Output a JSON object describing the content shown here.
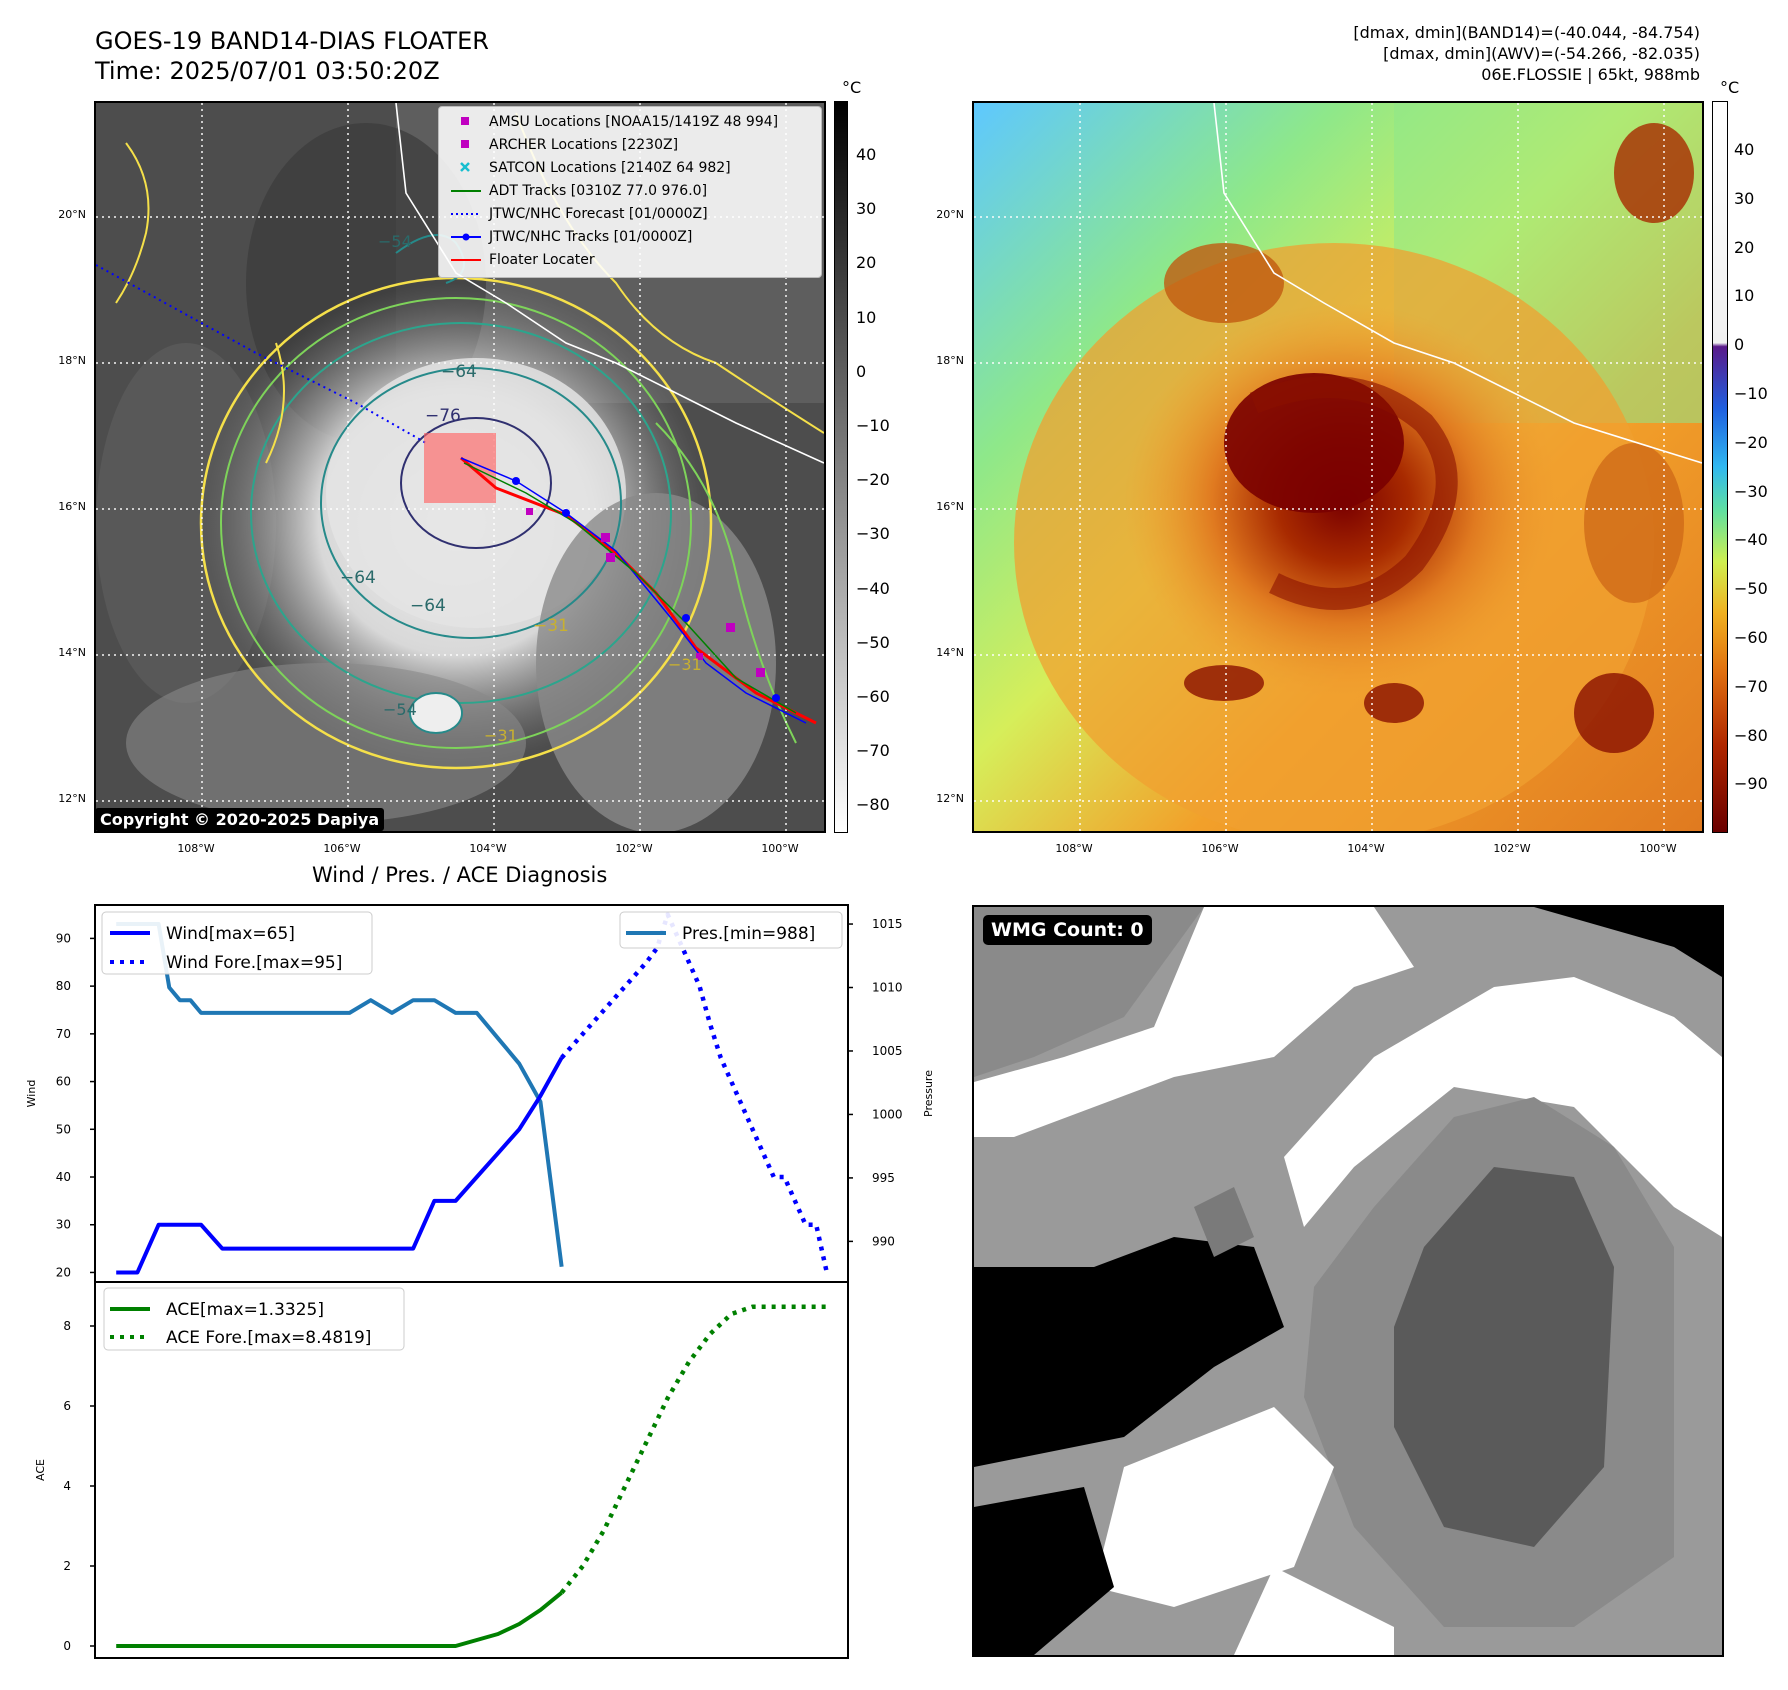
{
  "header": {
    "title_line1": "GOES-19 BAND14-DIAS FLOATER",
    "title_line2": "Time: 2025/07/01 03:50:20Z",
    "info_line1": "[dmax, dmin](BAND14)=(-40.044, -84.754)",
    "info_line2": "[dmax, dmin](AWV)=(-54.266, -82.035)",
    "info_line3": "06E.FLOSSIE | 65kt, 988mb"
  },
  "map_axes": {
    "lat_labels": [
      "20°N",
      "18°N",
      "16°N",
      "14°N",
      "12°N"
    ],
    "lon_labels": [
      "108°W",
      "106°W",
      "104°W",
      "102°W",
      "100°W"
    ]
  },
  "left_map": {
    "colorbar_unit": "°C",
    "colorbar_ticks": [
      "40",
      "30",
      "20",
      "10",
      "0",
      "−10",
      "−20",
      "−30",
      "−40",
      "−50",
      "−60",
      "−70",
      "−80"
    ],
    "contour_labels": [
      "−64",
      "−76",
      "−64",
      "−64",
      "−31",
      "−54",
      "−54",
      "−31",
      "−31"
    ],
    "legend": [
      {
        "label": "AMSU Locations [NOAA15/1419Z 48 994]",
        "symbol": "square",
        "color": "#c000c0"
      },
      {
        "label": "ARCHER Locations [2230Z]",
        "symbol": "square",
        "color": "#c000c0"
      },
      {
        "label": "SATCON Locations [2140Z 64 982]",
        "symbol": "x",
        "color": "#17becf"
      },
      {
        "label": "ADT Tracks [0310Z 77.0 976.0]",
        "symbol": "line",
        "color": "#008000"
      },
      {
        "label": "JTWC/NHC Forecast [01/0000Z]",
        "symbol": "dotted",
        "color": "#0000ff"
      },
      {
        "label": "JTWC/NHC Tracks [01/0000Z]",
        "symbol": "line-dot",
        "color": "#0000ff"
      },
      {
        "label": "Floater Locater",
        "symbol": "line",
        "color": "#ff0000"
      }
    ],
    "copyright": "Copyright © 2020-2025 Dapiya"
  },
  "right_map": {
    "colorbar_unit": "°C",
    "colorbar_ticks": [
      "40",
      "30",
      "20",
      "10",
      "0",
      "−10",
      "−20",
      "−30",
      "−40",
      "−50",
      "−60",
      "−70",
      "−80",
      "−90"
    ]
  },
  "wmg": {
    "badge": "WMG Count: 0"
  },
  "chart_data": [
    {
      "type": "line",
      "title": "Wind / Pres. / ACE Diagnosis",
      "ylabel": "Wind",
      "ylabel_right": "Pressure",
      "ylim": [
        18,
        97
      ],
      "ylim_right": [
        986.8,
        1016.5
      ],
      "yticks": [
        20,
        30,
        40,
        50,
        60,
        70,
        80,
        90
      ],
      "yticks_right": [
        990,
        995,
        1000,
        1005,
        1010,
        1015
      ],
      "x": [
        0,
        1,
        2,
        3,
        4,
        5,
        6,
        7,
        8,
        9,
        10,
        11,
        12,
        13,
        14,
        15,
        16,
        17,
        18,
        19,
        20,
        21,
        22,
        23,
        24,
        25,
        26,
        27,
        28,
        29,
        30,
        31,
        32,
        33,
        34,
        35,
        36,
        37,
        38,
        39,
        40,
        41,
        42,
        43,
        44,
        45,
        46,
        47,
        48,
        49,
        50
      ],
      "legend_left": [
        "Wind[max=65]",
        "Wind Fore.[max=95]"
      ],
      "legend_right": [
        "Pres.[min=988]"
      ],
      "series": [
        {
          "name": "Wind[max=65]",
          "axis": "left",
          "style": "solid",
          "color": "#0000ff",
          "x": [
            0,
            2,
            4,
            6,
            8,
            10,
            12,
            14,
            16,
            18,
            20,
            22,
            24,
            26,
            28,
            30,
            32,
            34,
            36,
            38,
            40,
            42
          ],
          "values": [
            20,
            20,
            30,
            30,
            30,
            25,
            25,
            25,
            25,
            25,
            25,
            25,
            25,
            25,
            25,
            35,
            35,
            40,
            45,
            50,
            57,
            65
          ]
        },
        {
          "name": "Wind Fore.[max=95]",
          "axis": "left",
          "style": "dotted",
          "color": "#0000ff",
          "x": [
            42,
            44,
            46,
            48,
            50,
            51,
            52,
            53,
            54,
            55,
            56,
            57,
            58,
            59,
            60,
            61,
            62,
            63,
            64,
            65,
            66,
            67
          ],
          "values": [
            65,
            70,
            75,
            80,
            85,
            88,
            95,
            90,
            85,
            80,
            72,
            65,
            60,
            55,
            50,
            45,
            40,
            40,
            35,
            30,
            30,
            20
          ]
        },
        {
          "name": "Pres.[min=988]",
          "axis": "right",
          "style": "solid",
          "color": "#1f77b4",
          "x": [
            0,
            2,
            3,
            4,
            5,
            6,
            7,
            8,
            9,
            10,
            12,
            14,
            16,
            18,
            20,
            22,
            24,
            26,
            28,
            30,
            32,
            34,
            36,
            38,
            40,
            42
          ],
          "values": [
            1015,
            1015,
            1015,
            1015,
            1010,
            1009,
            1009,
            1008,
            1008,
            1008,
            1008,
            1008,
            1008,
            1008,
            1008,
            1008,
            1009,
            1008,
            1009,
            1009,
            1008,
            1008,
            1006,
            1004,
            1001,
            988
          ]
        }
      ]
    },
    {
      "type": "line",
      "ylabel": "ACE",
      "ylim": [
        -0.3,
        9.1
      ],
      "yticks": [
        0,
        2,
        4,
        6,
        8
      ],
      "legend": [
        "ACE[max=1.3325]",
        "ACE Fore.[max=8.4819]"
      ],
      "series": [
        {
          "name": "ACE[max=1.3325]",
          "style": "solid",
          "color": "#008000",
          "x": [
            0,
            5,
            10,
            15,
            20,
            25,
            30,
            32,
            34,
            36,
            38,
            40,
            42
          ],
          "values": [
            0,
            0,
            0,
            0,
            0,
            0,
            0,
            0,
            0.15,
            0.3,
            0.55,
            0.9,
            1.3325
          ]
        },
        {
          "name": "ACE Fore.[max=8.4819]",
          "style": "dotted",
          "color": "#008000",
          "x": [
            42,
            44,
            46,
            48,
            50,
            52,
            54,
            56,
            58,
            60,
            62,
            64,
            66,
            67
          ],
          "values": [
            1.3325,
            2.0,
            2.9,
            4.0,
            5.1,
            6.2,
            7.1,
            7.8,
            8.3,
            8.4819,
            8.4819,
            8.4819,
            8.4819,
            8.4819
          ]
        }
      ]
    }
  ]
}
